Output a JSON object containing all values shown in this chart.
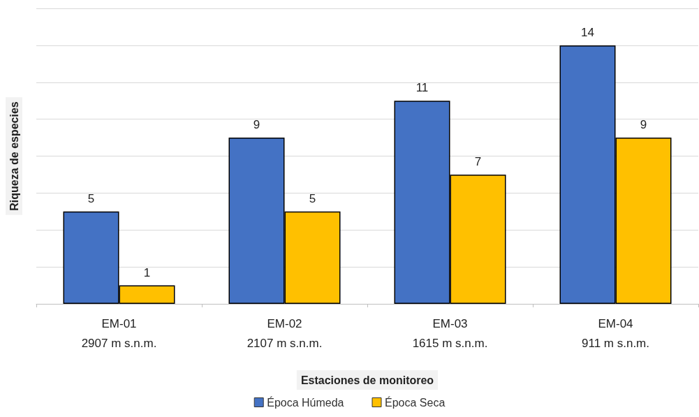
{
  "chart_data": {
    "type": "bar",
    "xlabel": "Estaciones de monitoreo",
    "ylabel": "Riqueza de especies",
    "categories": [
      "EM-01\n2907 m s.n.m.",
      "EM-02\n2107 m s.n.m.",
      "EM-03\n1615 m s.n.m.",
      "EM-04\n911 m s.n.m."
    ],
    "series": [
      {
        "name": "Época Húmeda",
        "color": "#4472c4",
        "values": [
          5,
          9,
          11,
          14
        ]
      },
      {
        "name": "Época Seca",
        "color": "#ffc000",
        "values": [
          1,
          5,
          7,
          9
        ]
      }
    ],
    "ylim": [
      0,
      16
    ],
    "tick_labels": "x",
    "grid": "y",
    "data_labels": true,
    "legend": "bottom"
  }
}
